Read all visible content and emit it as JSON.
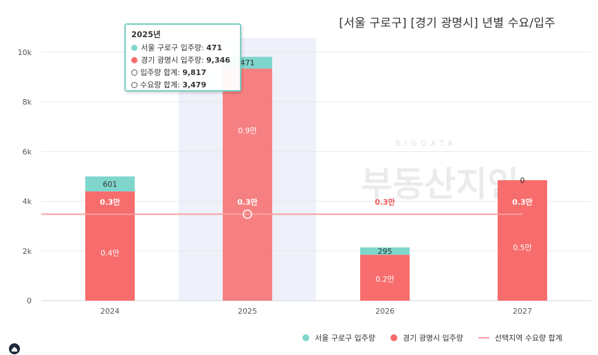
{
  "title": "[서울 구로구] [경기 광명시] 년별 수요/입주",
  "watermark": {
    "text": "부동산지인",
    "small": "BIGDATA"
  },
  "colors": {
    "seoul": "#7ed6cc",
    "gyeonggi": "#f76c6c",
    "demand": "#f6a0a0",
    "highlight": "#eef1f9"
  },
  "tooltip": {
    "header": "2025년",
    "rows": [
      {
        "icon": "teal-dot",
        "label": "서울 구로구 입주량: ",
        "value": "471"
      },
      {
        "icon": "red-dot",
        "label": "경기 광명시 입주량: ",
        "value": "9,346"
      },
      {
        "icon": "ring",
        "label": "입주량 합계: ",
        "value": "9,817"
      },
      {
        "icon": "ring",
        "label": "수요량 합계: ",
        "value": "3,479"
      }
    ]
  },
  "legend": [
    {
      "label": "서울 구로구 입주량",
      "icon": "teal-dot"
    },
    {
      "label": "경기 광명시 입주량",
      "icon": "red-dot"
    },
    {
      "label": "선택지역 수요량 합계",
      "icon": "pink-line"
    }
  ],
  "chart_data": {
    "type": "bar",
    "stacked": true,
    "categories": [
      "2024",
      "2025",
      "2026",
      "2027"
    ],
    "series": [
      {
        "name": "경기 광명시 입주량",
        "values": [
          4400,
          9346,
          1850,
          4850
        ],
        "inner_label": [
          "0.4만",
          "0.9만",
          "0.2만",
          "0.5만"
        ]
      },
      {
        "name": "서울 구로구 입주량",
        "values": [
          601,
          471,
          295,
          0
        ],
        "top_label": [
          "601",
          "471",
          "295",
          "0"
        ]
      },
      {
        "name": "선택지역 수요량 합계",
        "type": "line",
        "values": [
          3479,
          3479,
          3479,
          3479
        ],
        "point_label": [
          "0.3만",
          "0.3만",
          "0.3만",
          "0.3만"
        ]
      }
    ],
    "yticks": [
      "0",
      "2k",
      "4k",
      "6k",
      "8k",
      "10k"
    ],
    "ytick_values": [
      0,
      2000,
      4000,
      6000,
      8000,
      10000
    ],
    "ylim": [
      0,
      10300
    ],
    "highlighted_category": "2025",
    "grid": true,
    "legend_position": "bottom-right"
  }
}
